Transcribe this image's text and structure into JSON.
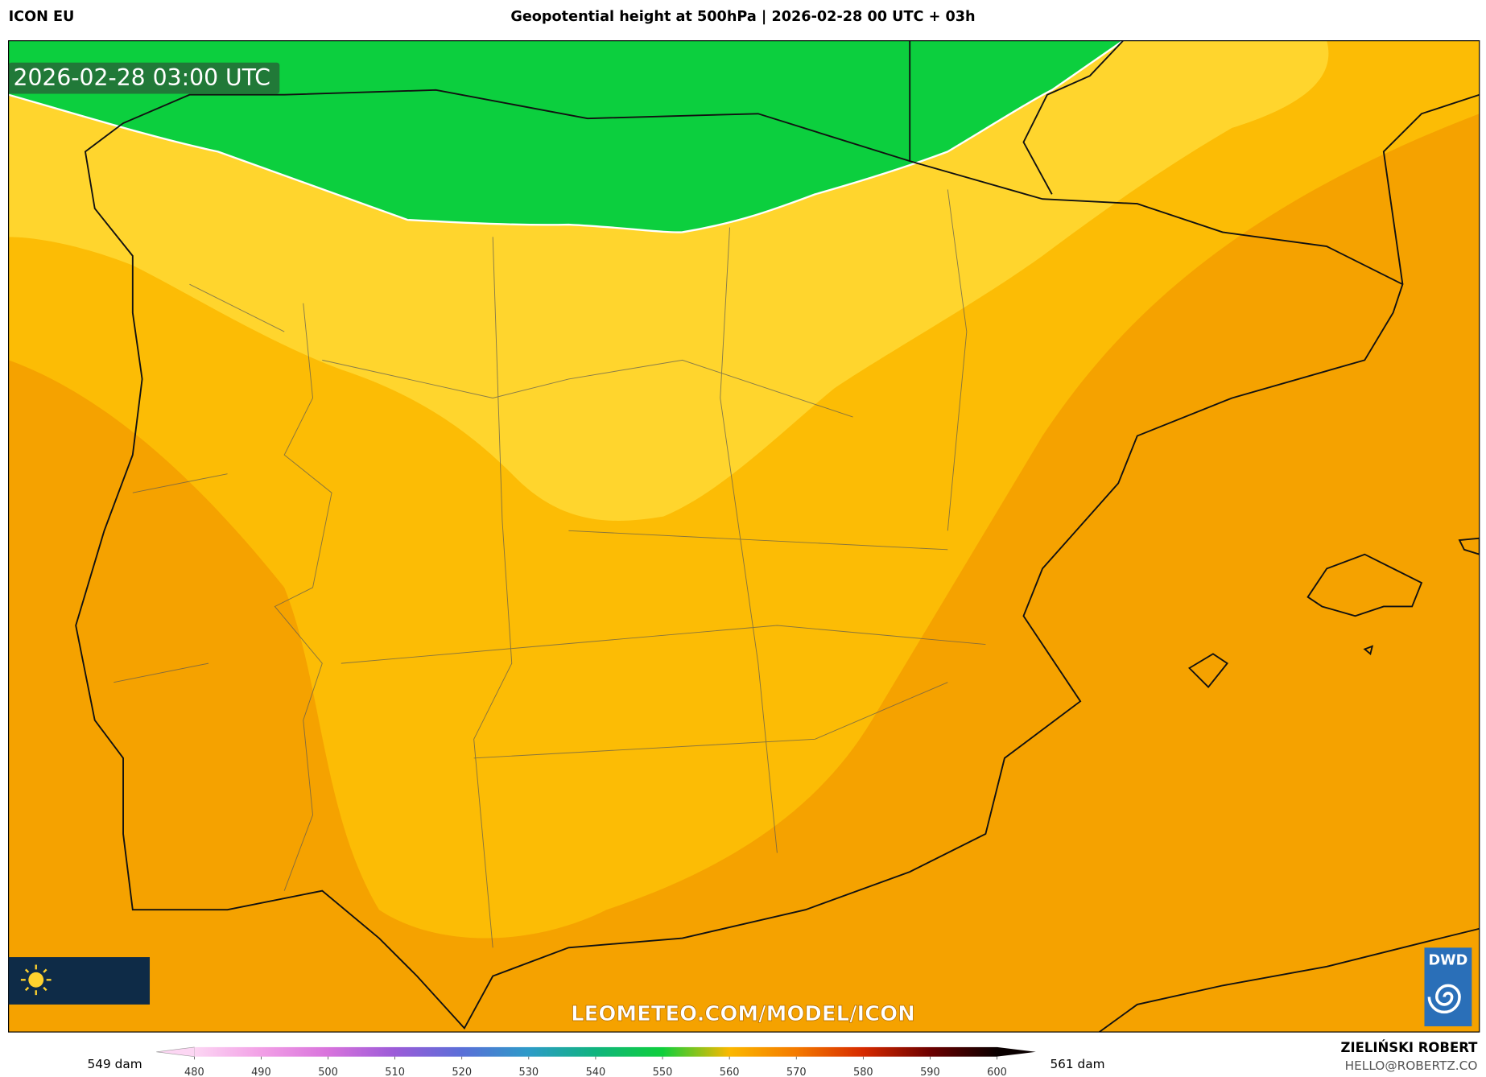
{
  "header": {
    "model": "ICON EU",
    "title": "Geopotential height at 500hPa | 2026-02-28 00 UTC + 03h"
  },
  "map": {
    "valid_time": "2026-02-28 03:00 UTC",
    "watermark": "LEOMETEO.COM/MODEL/ICON",
    "logo": "DWD"
  },
  "colorbar": {
    "min_label": "549 dam",
    "max_label": "561 dam",
    "ticks": [
      480,
      490,
      500,
      510,
      520,
      530,
      540,
      550,
      560,
      570,
      580,
      590,
      600
    ],
    "colors": [
      "#fcd6f3",
      "#f2a0e6",
      "#d873dc",
      "#9b5bd8",
      "#5a6fd8",
      "#2d9bc8",
      "#10b47e",
      "#0fcf3c",
      "#fbb800",
      "#f47a00",
      "#d62a00",
      "#6d0000",
      "#0a0000"
    ]
  },
  "credits": {
    "author": "ZIELIŃSKI ROBERT",
    "email": "HELLO@ROBERTZ.CO"
  }
}
